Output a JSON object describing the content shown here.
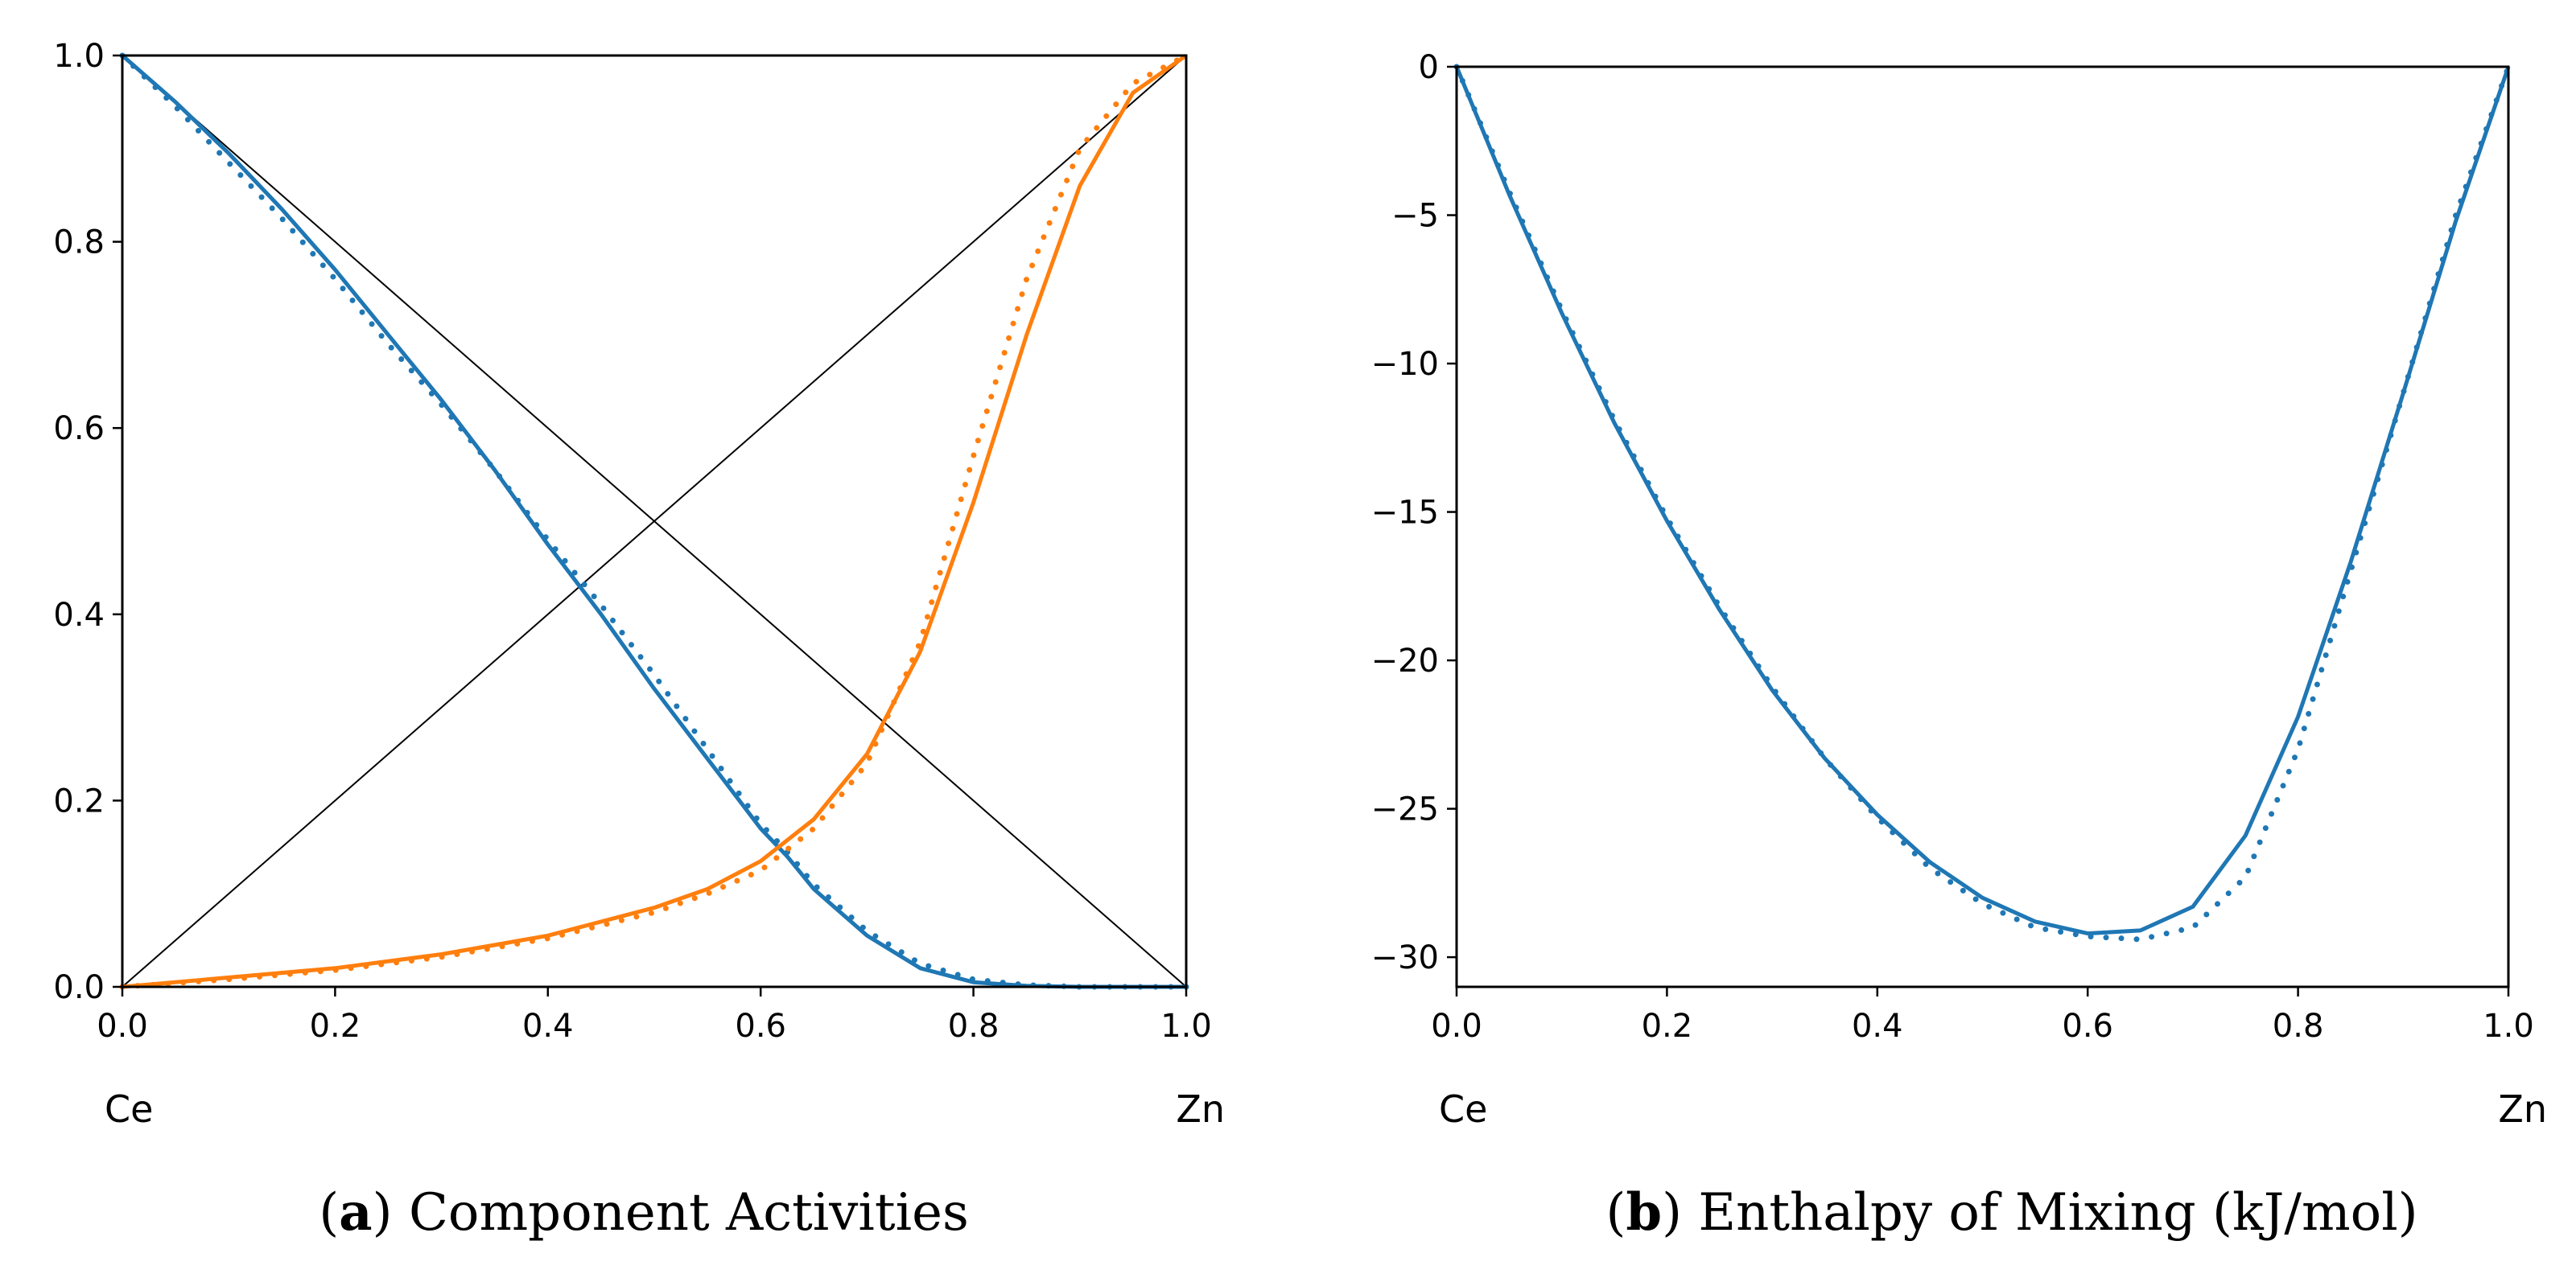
{
  "chart_data": [
    {
      "type": "line",
      "panel_letter": "a",
      "caption": "Component Activities",
      "xlim": [
        0.0,
        1.0
      ],
      "ylim": [
        0.0,
        1.0
      ],
      "xticks": [
        "0.0",
        "0.2",
        "0.4",
        "0.6",
        "0.8",
        "1.0"
      ],
      "yticks": [
        "0.0",
        "0.2",
        "0.4",
        "0.6",
        "0.8",
        "1.0"
      ],
      "x_start_label": "Ce",
      "x_end_label": "Zn",
      "colors": {
        "ce_activity": "#1f77b4",
        "zn_activity": "#ff7f0e",
        "ideal": "#000000"
      },
      "reference_lines": [
        {
          "name": "ideal-ce",
          "x": [
            0.0,
            1.0
          ],
          "y": [
            1.0,
            0.0
          ]
        },
        {
          "name": "ideal-zn",
          "x": [
            0.0,
            1.0
          ],
          "y": [
            0.0,
            1.0
          ]
        }
      ],
      "series": [
        {
          "name": "Ce activity (model)",
          "style": "solid",
          "color": "#1f77b4",
          "x": [
            0.0,
            0.05,
            0.1,
            0.15,
            0.2,
            0.25,
            0.3,
            0.35,
            0.4,
            0.45,
            0.5,
            0.55,
            0.6,
            0.625,
            0.65,
            0.7,
            0.75,
            0.8,
            0.85,
            0.9,
            0.95,
            1.0
          ],
          "y": [
            1.0,
            0.95,
            0.895,
            0.835,
            0.77,
            0.7,
            0.63,
            0.555,
            0.475,
            0.4,
            0.32,
            0.245,
            0.17,
            0.14,
            0.105,
            0.055,
            0.02,
            0.005,
            0.001,
            0.0,
            0.0,
            0.0
          ]
        },
        {
          "name": "Ce activity (data)",
          "style": "dotted",
          "color": "#1f77b4",
          "x": [
            0.0,
            0.05,
            0.1,
            0.15,
            0.2,
            0.25,
            0.3,
            0.35,
            0.4,
            0.45,
            0.5,
            0.55,
            0.6,
            0.625,
            0.65,
            0.7,
            0.75,
            0.8,
            0.85,
            0.9,
            0.95,
            1.0
          ],
          "y": [
            1.0,
            0.945,
            0.885,
            0.825,
            0.76,
            0.69,
            0.625,
            0.555,
            0.48,
            0.41,
            0.335,
            0.255,
            0.175,
            0.145,
            0.11,
            0.06,
            0.025,
            0.008,
            0.002,
            0.0,
            0.0,
            0.0
          ]
        },
        {
          "name": "Zn activity (model)",
          "style": "solid",
          "color": "#ff7f0e",
          "x": [
            0.0,
            0.1,
            0.2,
            0.3,
            0.4,
            0.5,
            0.55,
            0.6,
            0.65,
            0.7,
            0.75,
            0.8,
            0.85,
            0.9,
            0.95,
            1.0
          ],
          "y": [
            0.0,
            0.01,
            0.02,
            0.035,
            0.055,
            0.085,
            0.105,
            0.135,
            0.18,
            0.25,
            0.36,
            0.52,
            0.7,
            0.86,
            0.96,
            1.0
          ]
        },
        {
          "name": "Zn activity (data)",
          "style": "dotted",
          "color": "#ff7f0e",
          "x": [
            0.0,
            0.1,
            0.2,
            0.3,
            0.4,
            0.5,
            0.55,
            0.6,
            0.65,
            0.7,
            0.75,
            0.8,
            0.85,
            0.9,
            0.95,
            1.0
          ],
          "y": [
            0.0,
            0.008,
            0.018,
            0.032,
            0.052,
            0.08,
            0.1,
            0.125,
            0.17,
            0.24,
            0.37,
            0.57,
            0.76,
            0.9,
            0.97,
            1.0
          ]
        }
      ]
    },
    {
      "type": "line",
      "panel_letter": "b",
      "caption": "Enthalpy of Mixing (kJ/mol)",
      "xlim": [
        0.0,
        1.0
      ],
      "ylim": [
        -31.0,
        0.0
      ],
      "xticks": [
        "0.0",
        "0.2",
        "0.4",
        "0.6",
        "0.8",
        "1.0"
      ],
      "yticks": [
        "0",
        "−5",
        "−10",
        "−15",
        "−20",
        "−25",
        "−30"
      ],
      "x_start_label": "Ce",
      "x_end_label": "Zn",
      "colors": {
        "enthalpy": "#1f77b4"
      },
      "series": [
        {
          "name": "Enthalpy of mixing (model)",
          "style": "solid",
          "color": "#1f77b4",
          "x": [
            0.0,
            0.05,
            0.1,
            0.15,
            0.2,
            0.25,
            0.3,
            0.35,
            0.4,
            0.45,
            0.5,
            0.55,
            0.6,
            0.65,
            0.7,
            0.75,
            0.8,
            0.85,
            0.9,
            0.95,
            1.0
          ],
          "y": [
            0.0,
            -4.3,
            -8.3,
            -12.0,
            -15.3,
            -18.3,
            -21.0,
            -23.3,
            -25.2,
            -26.8,
            -28.0,
            -28.8,
            -29.2,
            -29.1,
            -28.3,
            -25.9,
            -21.9,
            -16.7,
            -11.0,
            -5.2,
            0.0
          ]
        },
        {
          "name": "Enthalpy of mixing (data)",
          "style": "dotted",
          "color": "#1f77b4",
          "x": [
            0.0,
            0.05,
            0.1,
            0.15,
            0.2,
            0.25,
            0.3,
            0.35,
            0.4,
            0.45,
            0.5,
            0.55,
            0.6,
            0.65,
            0.7,
            0.75,
            0.8,
            0.85,
            0.9,
            0.95,
            1.0
          ],
          "y": [
            0.0,
            -4.2,
            -8.2,
            -11.9,
            -15.2,
            -18.2,
            -20.9,
            -23.3,
            -25.3,
            -27.0,
            -28.2,
            -29.0,
            -29.3,
            -29.4,
            -29.0,
            -27.3,
            -23.0,
            -17.0,
            -11.0,
            -5.0,
            0.0
          ]
        }
      ]
    }
  ]
}
